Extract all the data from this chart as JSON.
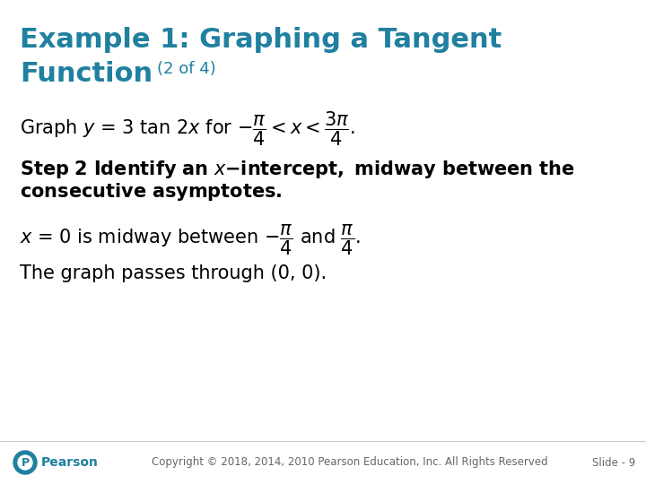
{
  "background_color": "#ffffff",
  "title_line1": "Example 1: Graphing a Tangent",
  "title_line2": "Function",
  "title_subtitle": "(2 of 4)",
  "title_color": "#2080A0",
  "title_fontsize": 22,
  "subtitle_fontsize": 13,
  "body_color": "#000000",
  "body_fontsize": 15,
  "bold_fontsize": 15,
  "footer_text": "Copyright © 2018, 2014, 2010 Pearson Education, Inc. All Rights Reserved",
  "slide_text": "Slide - 9",
  "footer_fontsize": 8.5,
  "through_text": "The graph passes through (0, 0).",
  "pearson_color": "#2080A0"
}
